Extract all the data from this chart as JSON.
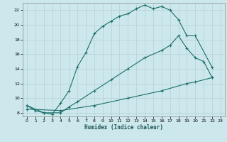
{
  "xlabel": "Humidex (Indice chaleur)",
  "bg_color": "#cde8ec",
  "line_color": "#1a6e6a",
  "grid_color": "#b8d4d8",
  "xlim": [
    -0.5,
    23.5
  ],
  "ylim": [
    7.5,
    23.0
  ],
  "xticks": [
    0,
    1,
    2,
    3,
    4,
    5,
    6,
    7,
    8,
    9,
    10,
    11,
    12,
    13,
    14,
    15,
    16,
    17,
    18,
    19,
    20,
    21,
    22,
    23
  ],
  "yticks": [
    8,
    10,
    12,
    14,
    16,
    18,
    20,
    22
  ],
  "line1_x": [
    0,
    1,
    2,
    3,
    4,
    5,
    6,
    7,
    8,
    9,
    10,
    11,
    12,
    13,
    14,
    15,
    16,
    17,
    18,
    19,
    20,
    22
  ],
  "line1_y": [
    9.0,
    8.3,
    8.0,
    7.8,
    9.3,
    11.0,
    14.3,
    16.2,
    18.8,
    19.8,
    20.5,
    21.2,
    21.5,
    22.2,
    22.7,
    22.2,
    22.5,
    22.0,
    20.7,
    18.5,
    18.5,
    14.2
  ],
  "line2_x": [
    0,
    2,
    4,
    5,
    6,
    8,
    10,
    12,
    14,
    16,
    17,
    18,
    19,
    20,
    21,
    22
  ],
  "line2_y": [
    9.0,
    8.0,
    8.0,
    8.8,
    9.5,
    11.0,
    12.5,
    14.0,
    15.5,
    16.5,
    17.2,
    18.5,
    16.8,
    15.5,
    15.0,
    12.8
  ],
  "line3_x": [
    0,
    4,
    8,
    12,
    16,
    19,
    20,
    22
  ],
  "line3_y": [
    8.5,
    8.3,
    9.0,
    10.0,
    11.0,
    12.0,
    12.2,
    12.8
  ]
}
